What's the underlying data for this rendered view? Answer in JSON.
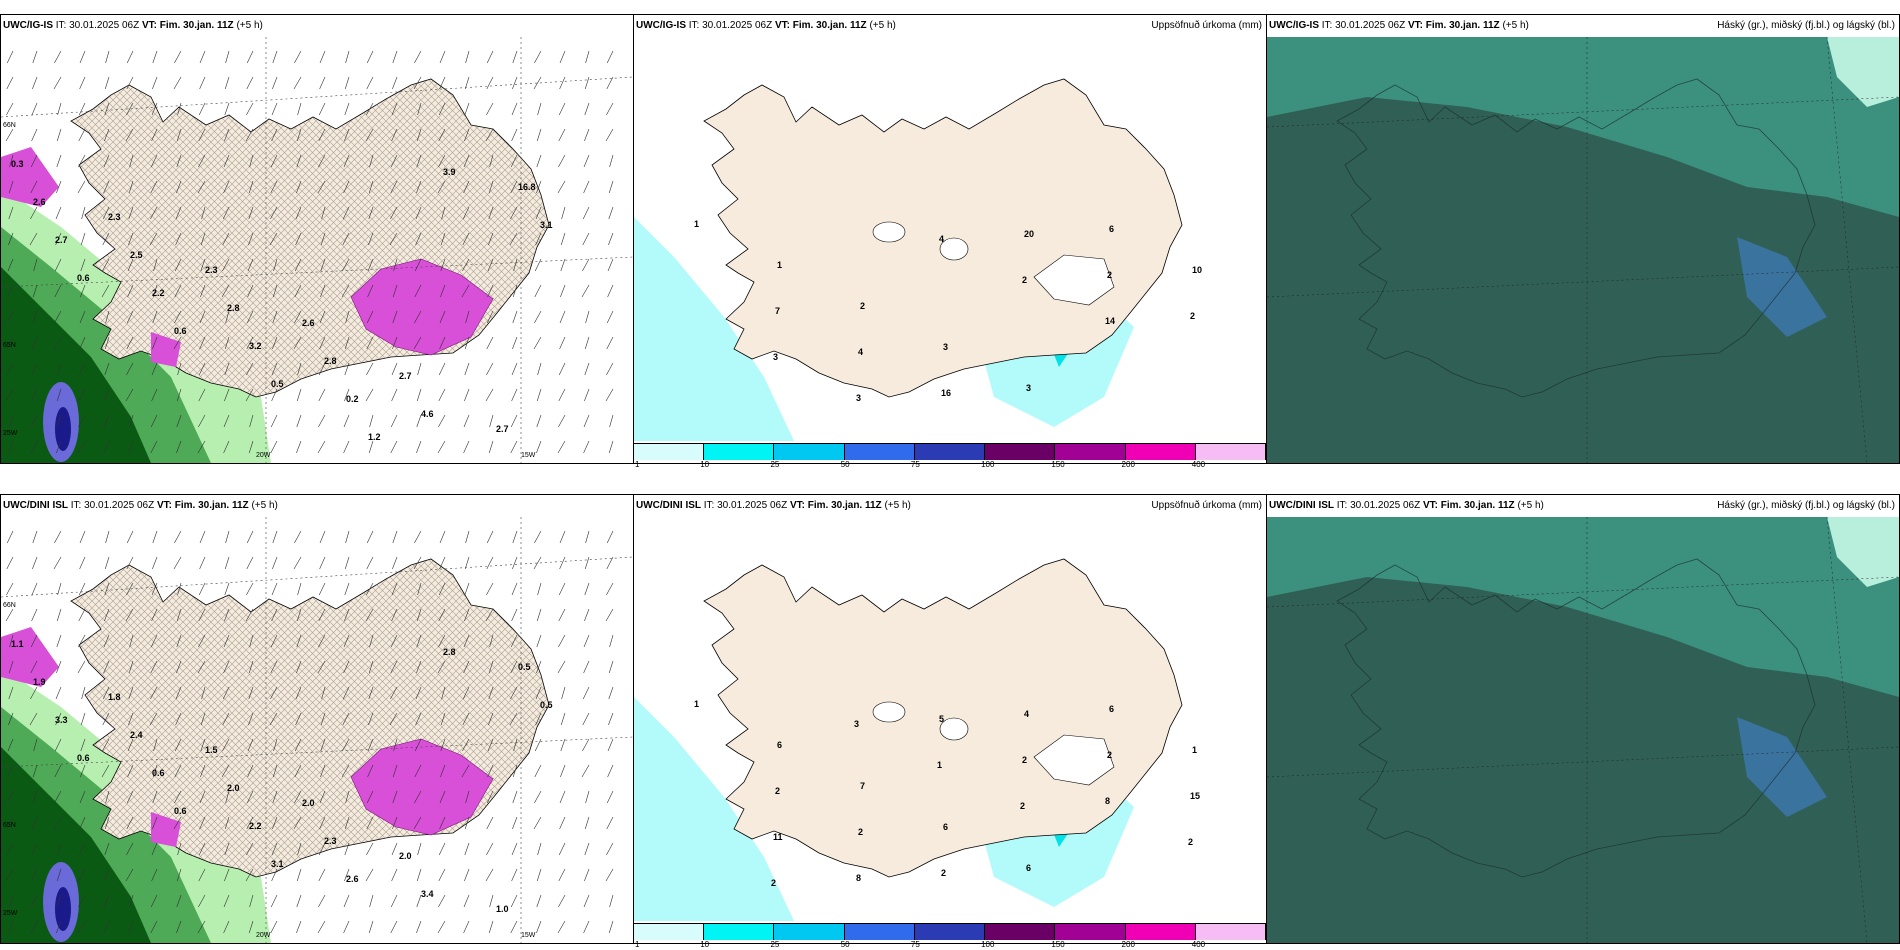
{
  "rows": [
    {
      "wind_panel": {
        "model_label": "UWC/IG-IS",
        "it_text": "IT: 30.01.2025 06Z",
        "vt_label": "VT: Fim. 30.jan. 11Z",
        "offset": "(+5 h)",
        "axis_labels": [
          "65N",
          "66N",
          "25W",
          "20W",
          "15W"
        ],
        "values": [
          "0.3",
          "2.3",
          "2.3",
          "2.6",
          "2.7",
          "2.7",
          "2.6",
          "2.5",
          "2.8",
          "2.8",
          "4.6",
          "16.8",
          "2.7",
          "2.2",
          "3.2",
          "0.2",
          "3.9",
          "3.1",
          "0.6",
          "0.6",
          "0.5",
          "1.2"
        ]
      },
      "precip_panel": {
        "model_label": "UWC/IG-IS",
        "it_text": "IT: 30.01.2025 06Z",
        "vt_label": "VT: Fim. 30.jan. 11Z",
        "offset": "(+5 h)",
        "title": "Uppsöfnuð úrkoma (mm)",
        "values": [
          "1",
          "1",
          "2",
          "3",
          "3",
          "6",
          "10",
          "7",
          "4",
          "16",
          "20",
          "2",
          "2",
          "3",
          "3",
          "4",
          "2",
          "14"
        ]
      },
      "cloud_panel": {
        "model_label": "UWC/IG-IS",
        "it_text": "IT: 30.01.2025 06Z",
        "vt_label": "VT: Fim. 30.jan. 11Z",
        "offset": "(+5 h)",
        "title": "Háský (gr.), miðský (fj.bl.) og lágský (bl.)"
      }
    },
    {
      "wind_panel": {
        "model_label": "UWC/DINI ISL",
        "it_text": "IT: 30.01.2025 06Z",
        "vt_label": "VT: Fim. 30.jan. 11Z",
        "offset": "(+5 h)",
        "axis_labels": [
          "65N",
          "66N",
          "25W",
          "20W",
          "15W"
        ],
        "values": [
          "1.1",
          "1.8",
          "1.5",
          "2.0",
          "2.0",
          "1.0",
          "1.9",
          "2.4",
          "2.0",
          "2.3",
          "3.4",
          "0.5",
          "3.3",
          "0.6",
          "2.2",
          "2.6",
          "2.8",
          "0.5",
          "0.6",
          "0.6",
          "3.1"
        ]
      },
      "precip_panel": {
        "model_label": "UWC/DINI ISL",
        "it_text": "IT: 30.01.2025 06Z",
        "vt_label": "VT: Fim. 30.jan. 11Z",
        "offset": "(+5 h)",
        "title": "Uppsöfnuð úrkoma (mm)",
        "values": [
          "1",
          "6",
          "7",
          "6",
          "6",
          "6",
          "1",
          "2",
          "2",
          "2",
          "4",
          "2",
          "15",
          "11",
          "8",
          "5",
          "2",
          "8",
          "2",
          "2",
          "3",
          "1",
          "2"
        ]
      },
      "cloud_panel": {
        "model_label": "UWC/DINI ISL",
        "it_text": "IT: 30.01.2025 06Z",
        "vt_label": "VT: Fim. 30.jan. 11Z",
        "offset": "(+5 h)",
        "title": "Háský (gr.), miðský (fj.bl.) og lágský (bl.)"
      }
    }
  ],
  "colorbar": {
    "ticks": [
      "1",
      "10",
      "25",
      "50",
      "75",
      "100",
      "150",
      "200",
      "400"
    ],
    "colors": [
      "#d8fbfb",
      "#00f4f4",
      "#00c8f0",
      "#2f6bea",
      "#2a3bb3",
      "#6a0066",
      "#a10095",
      "#f000b4",
      "#f6bdf4"
    ]
  },
  "colors": {
    "land": "#f6ebdc",
    "sea_cloud": "#2f5f55",
    "cloud_teal": "#3f9c88",
    "precip_light": "#b3fafa",
    "pink": "#d84fd8",
    "green_dark": "#0a5a14",
    "green_light": "#b7efb0"
  }
}
